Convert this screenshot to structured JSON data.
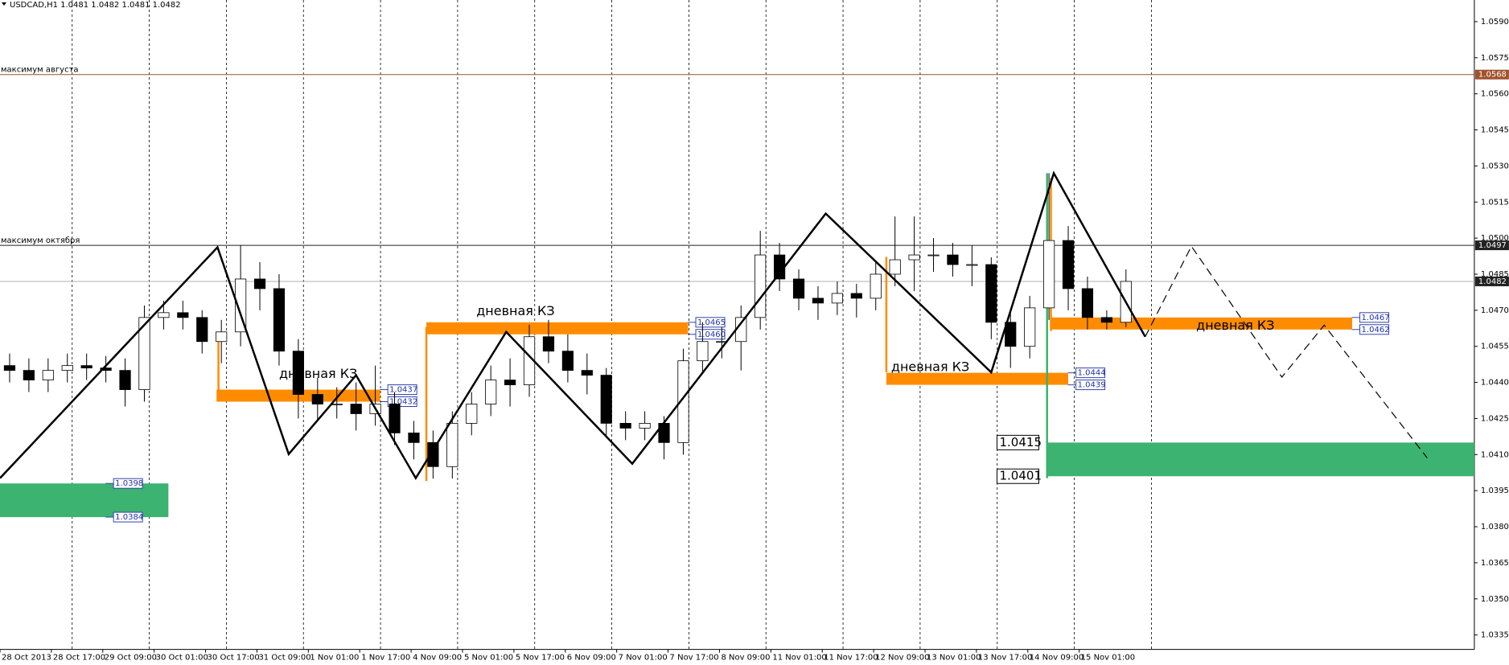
{
  "chart_data": {
    "type": "candlestick",
    "title": "USDCAD,H1  1.0481 1.0482 1.0481 1.0482",
    "xtick_labels": [
      "28 Oct 2013",
      "28 Oct 17:00",
      "29 Oct 09:00",
      "30 Oct 01:00",
      "30 Oct 17:00",
      "31 Oct 09:00",
      "1 Nov 01:00",
      "1 Nov 17:00",
      "4 Nov 09:00",
      "5 Nov 01:00",
      "5 Nov 17:00",
      "6 Nov 09:00",
      "7 Nov 01:00",
      "7 Nov 17:00",
      "8 Nov 09:00",
      "11 Nov 01:00",
      "11 Nov 17:00",
      "12 Nov 09:00",
      "13 Nov 01:00",
      "13 Nov 17:00",
      "14 Nov 09:00",
      "15 Nov 01:00"
    ],
    "open": [
      1.0447,
      1.0445,
      1.0441,
      1.0445,
      1.0447,
      1.0446,
      1.0445,
      1.0437,
      1.0467,
      1.0469,
      1.0467,
      1.0457,
      1.0461,
      1.0483,
      1.0479,
      1.0453,
      1.0435,
      1.0431,
      1.0431,
      1.0427,
      1.0431,
      1.0419,
      1.0415,
      1.0405,
      1.0423,
      1.0431,
      1.0441,
      1.0439,
      1.0459,
      1.0453,
      1.0445,
      1.0443,
      1.0423,
      1.0421,
      1.0423,
      1.0415,
      1.0449,
      1.0457,
      1.0457,
      1.0467,
      1.0493,
      1.0483,
      1.0475,
      1.0473,
      1.0477,
      1.0475,
      1.0485,
      1.0491,
      1.0493,
      1.0493,
      1.0489,
      1.0489,
      1.0465,
      1.0455,
      1.0471,
      1.0499,
      1.0479,
      1.0467,
      1.0465
    ],
    "high": [
      1.0452,
      1.045,
      1.045,
      1.0452,
      1.0452,
      1.0451,
      1.045,
      1.0472,
      1.0474,
      1.0474,
      1.047,
      1.0466,
      1.0497,
      1.049,
      1.0485,
      1.0458,
      1.0442,
      1.0438,
      1.044,
      1.0447,
      1.0436,
      1.0424,
      1.042,
      1.0428,
      1.0436,
      1.0447,
      1.045,
      1.0464,
      1.0466,
      1.046,
      1.0452,
      1.0446,
      1.0428,
      1.0428,
      1.0426,
      1.0454,
      1.0465,
      1.0463,
      1.0472,
      1.0503,
      1.0498,
      1.0487,
      1.048,
      1.0482,
      1.0481,
      1.049,
      1.0509,
      1.0509,
      1.05,
      1.0498,
      1.0497,
      1.0492,
      1.047,
      1.0476,
      1.0527,
      1.0505,
      1.0484,
      1.047,
      1.0487
    ],
    "low": [
      1.044,
      1.0436,
      1.0436,
      1.044,
      1.0441,
      1.044,
      1.043,
      1.0432,
      1.0462,
      1.0462,
      1.0452,
      1.0448,
      1.0455,
      1.047,
      1.0447,
      1.0425,
      1.0424,
      1.0425,
      1.042,
      1.0422,
      1.0414,
      1.0408,
      1.04,
      1.04,
      1.0418,
      1.0426,
      1.043,
      1.0434,
      1.0448,
      1.044,
      1.0435,
      1.0418,
      1.0416,
      1.0416,
      1.0408,
      1.041,
      1.0444,
      1.045,
      1.0445,
      1.0462,
      1.0478,
      1.047,
      1.0466,
      1.0468,
      1.0467,
      1.047,
      1.048,
      1.0478,
      1.0486,
      1.0484,
      1.048,
      1.0458,
      1.0446,
      1.045,
      1.0466,
      1.047,
      1.0462,
      1.0462,
      1.0463
    ],
    "close": [
      1.0445,
      1.0441,
      1.0445,
      1.0447,
      1.0446,
      1.0445,
      1.0437,
      1.0467,
      1.0469,
      1.0467,
      1.0457,
      1.0461,
      1.0483,
      1.0479,
      1.0453,
      1.0435,
      1.0431,
      1.0431,
      1.0427,
      1.0431,
      1.0419,
      1.0415,
      1.0405,
      1.0423,
      1.0431,
      1.0441,
      1.0439,
      1.0459,
      1.0453,
      1.0445,
      1.0443,
      1.0423,
      1.0421,
      1.0423,
      1.0415,
      1.0449,
      1.0457,
      1.0457,
      1.0467,
      1.0493,
      1.0483,
      1.0475,
      1.0473,
      1.0477,
      1.0475,
      1.0485,
      1.0491,
      1.0493,
      1.0493,
      1.0489,
      1.0489,
      1.0465,
      1.0455,
      1.0471,
      1.0499,
      1.0479,
      1.0467,
      1.0465,
      1.0482
    ],
    "up_color": "#ffffff",
    "down_color": "#000000",
    "ylim": [
      1.0329,
      1.0599
    ],
    "yticks": [
      1.0335,
      {
        "value": 1.035,
        "label": "1.0350"
      },
      1.0365,
      {
        "value": 1.038,
        "label": "1.0380"
      },
      1.0395,
      {
        "value": 1.041,
        "label": "1.0410"
      },
      1.0425,
      {
        "value": 1.044,
        "label": "1.0440"
      },
      1.0455,
      {
        "value": 1.047,
        "label": "1.0470"
      },
      1.0485,
      {
        "value": 1.05,
        "label": "1.0500"
      },
      1.0515,
      {
        "value": 1.053,
        "label": "1.0530"
      },
      1.0545,
      {
        "value": 1.056,
        "label": "1.0560"
      },
      1.0575,
      {
        "value": 1.059,
        "label": "1.0590"
      }
    ],
    "grid": true,
    "levels": [
      {
        "label": "максимум августа",
        "value": 1.0568,
        "color": "#a0522d"
      },
      {
        "label": "максимум октября",
        "value": 1.0497,
        "color": "#222222"
      },
      {
        "value": 1.0482,
        "color": "#b0b0b0"
      }
    ],
    "zones": [
      {
        "values": [
          1.0398,
          1.0384
        ],
        "color": "#3cb371"
      },
      {
        "label": "дневная КЗ",
        "values": [
          1.0437,
          1.0432
        ],
        "color": "#ff8c00"
      },
      {
        "label": "дневная КЗ",
        "values": [
          1.0465,
          1.046
        ],
        "value_labels": [
          "1.0465",
          "1.0460"
        ],
        "color": "#ff8c00"
      },
      {
        "label": "дневная КЗ",
        "values": [
          1.0444,
          1.0439
        ],
        "color": "#ff8c00"
      },
      {
        "label": "дневная КЗ",
        "values": [
          1.0467,
          1.0462
        ],
        "color": "#ff8c00"
      },
      {
        "values": [
          1.0415,
          1.0401
        ],
        "color": "#3cb371"
      }
    ]
  }
}
